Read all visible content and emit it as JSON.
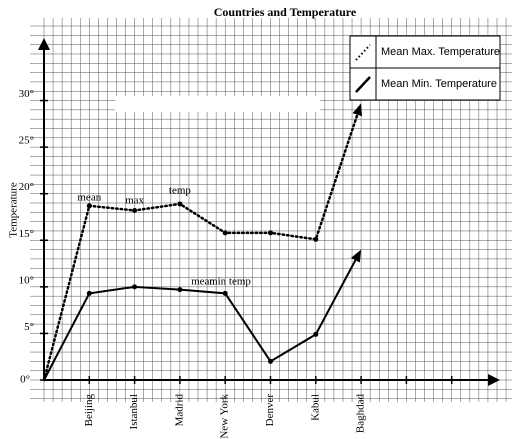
{
  "chart_data": {
    "type": "line",
    "title": "Countries and Temperature",
    "y_label": "Temperature",
    "categories": [
      null,
      "Beijing",
      "Istanbul",
      "Madrid",
      "New York",
      "Denver",
      "Kabul",
      "Baghdad",
      null,
      null
    ],
    "series": [
      {
        "name": "Mean Max. Temperature",
        "color": "#000000",
        "line_style": "dotted",
        "values": [
          0,
          18.7,
          18.2,
          18.9,
          15.8,
          15.8,
          15.1,
          29.7,
          null,
          null
        ]
      },
      {
        "name": "Mean Min. Temperature",
        "color": "#000000",
        "line_style": "solid",
        "values": [
          0,
          9.3,
          10,
          9.7,
          9.3,
          2,
          4.9,
          14,
          null,
          null
        ]
      }
    ],
    "ylim": [
      0,
      36.5
    ],
    "yticks": [
      {
        "value": 0,
        "label": "0°"
      },
      {
        "value": 5,
        "label": "5°"
      },
      {
        "value": 10,
        "label": "10°"
      },
      {
        "value": 15,
        "label": "15°"
      },
      {
        "value": 20,
        "label": "20°"
      },
      {
        "value": 25,
        "label": "25°"
      },
      {
        "value": 30,
        "label": "30°"
      }
    ],
    "annotations": [
      "mean",
      "max",
      "temp",
      "mean",
      "min temp"
    ],
    "grid": true,
    "legend": "top-right"
  }
}
